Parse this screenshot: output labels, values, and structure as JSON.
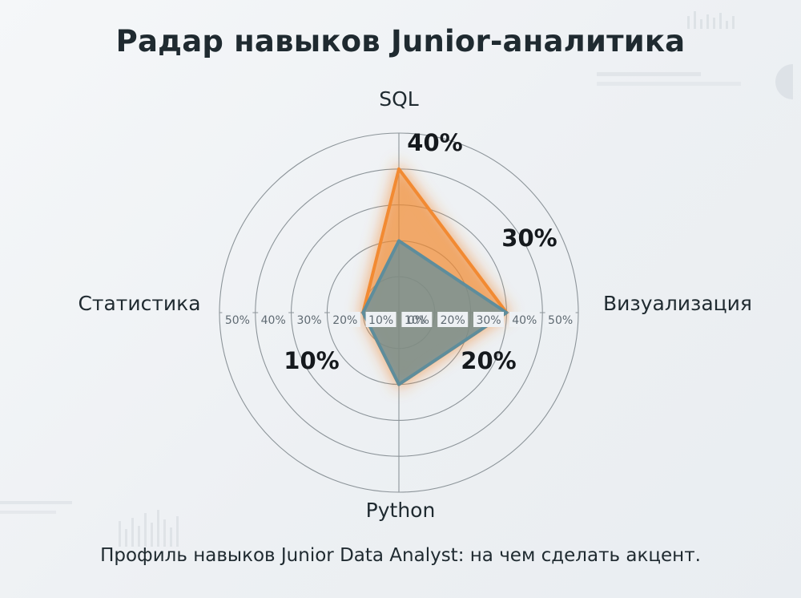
{
  "title": "Радар навыков Junior-аналитика",
  "caption": "Профиль навыков Junior Data Analyst: на чем сделать акцент.",
  "colors": {
    "target": "#f28a32",
    "current": "#5e8d9c",
    "grid": "#8c9499"
  },
  "chart_data": {
    "type": "radar",
    "title": "Радар навыков Junior-аналитика",
    "axes": [
      "SQL",
      "Визуализация",
      "Python",
      "Статистика"
    ],
    "rings": [
      10,
      20,
      30,
      40,
      50
    ],
    "ring_labels": [
      "10%",
      "20%",
      "30%",
      "40%",
      "50%"
    ],
    "zero_label": "0%",
    "rmax": 50,
    "series": [
      {
        "values": [
          40,
          30,
          20,
          10
        ],
        "color": "#f28a32",
        "fill_opacity": 0.35
      },
      {
        "values": [
          20,
          30,
          20,
          10
        ],
        "color": "#5e8d9c",
        "fill_opacity": 0.7
      }
    ],
    "value_labels": [
      "40%",
      "30%",
      "20%",
      "10%"
    ]
  }
}
